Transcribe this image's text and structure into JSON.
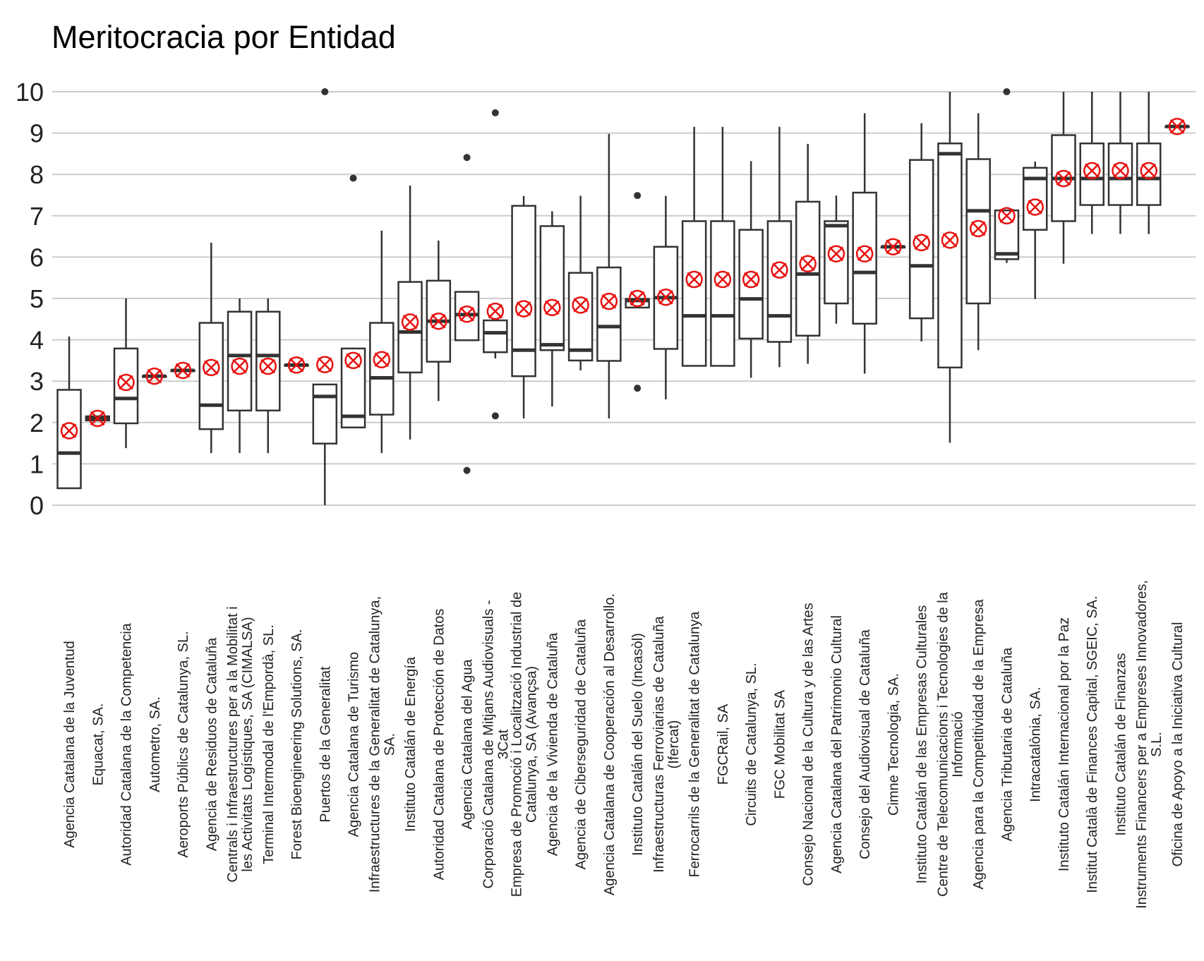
{
  "chart_data": {
    "type": "box",
    "title": "Meritocracia por Entidad",
    "xlabel": "",
    "ylabel": "",
    "ylim": [
      0,
      10
    ],
    "yticks": [
      "0",
      "1",
      "2",
      "3",
      "4",
      "5",
      "6",
      "7",
      "8",
      "9",
      "10"
    ],
    "grid": "horizontal",
    "colors": {
      "box_edge": "#333333",
      "mean_marker": "#e8110f",
      "grid": "#cccccc"
    },
    "mean_marker": "red circle with x",
    "categories": [
      "Agencia Catalana de la Juventud",
      "Equacat, SA.",
      "Autoridad Catalana de la Competencia",
      "Autometro, SA.",
      "Aeroports Públics de Catalunya, SL.",
      "Agencia de Residuos de Cataluña",
      "Centrals i Infraestructures per a la Mobilitat i\nles Activitats Logístiques, SA (CIMALSA)",
      "Terminal Intermodal de l'Empordà, SL.",
      "Forest Bioengineering Solutions, SA.",
      "Puertos de la Generalitat",
      "Agencia Catalana de Turismo",
      "Infraestructures de la Generalitat de Catalunya,\nSA.",
      "Instituto Catalán de Energía",
      "Autoridad Catalana de Protección de Datos",
      "Agencia Catalana del Agua",
      "Corporació Catalana de Mitjans Audiovisuals -\n3Cat",
      "Empresa de Promoció i Localització Industrial de\nCatalunya, SA (Avançsa)",
      "Agencia de la Vivienda de Cataluña",
      "Agencia de Ciberseguridad de Cataluña",
      "Agencia Catalana de Cooperación al Desarrollo.",
      "Instituto Catalán del Suelo (Incasòl)",
      "Infraestructuras Ferroviarias de Cataluña\n(Ifercat)",
      "Ferrocarrils de la Generalitat de Catalunya",
      "FGCRail, SA",
      "Circuits de Catalunya, SL.",
      "FGC Mobilitat SA",
      "Consejo Nacional de la Cultura y de las Artes",
      "Agencia Catalana del Patrimonio Cultural",
      "Consejo del Audiovisual de Cataluña",
      "Cimne Tecnologia, SA.",
      "Instituto Catalán de las Empresas Culturales",
      "Centre de Telecomunicacions i Tecnologies de la\nInformació",
      "Agencia para la Competitividad de la Empresa",
      "Agencia Tributaria de Cataluña",
      "Intracatalònia, SA.",
      "Instituto Catalán Internacional por la Paz",
      "Institut Català de Finances Capital, SGEIC, SA.",
      "Instituto Catalán de Finanzas",
      "Instruments Financers per a Empreses Innovadores,\nS.L.",
      "Oficina de Apoyo a la Iniciativa Cultural"
    ],
    "boxes": [
      {
        "whislo": 0.41,
        "q1": 0.41,
        "med": 1.26,
        "q3": 2.79,
        "whishi": 4.08,
        "mean": 1.8,
        "fliers": []
      },
      {
        "whislo": 2.05,
        "q1": 2.05,
        "med": 2.1,
        "q3": 2.15,
        "whishi": 2.15,
        "mean": 2.1,
        "fliers": []
      },
      {
        "whislo": 1.38,
        "q1": 1.98,
        "med": 2.58,
        "q3": 3.79,
        "whishi": 5.0,
        "mean": 2.97,
        "fliers": []
      },
      {
        "whislo": 3.12,
        "q1": 3.12,
        "med": 3.12,
        "q3": 3.12,
        "whishi": 3.12,
        "mean": 3.12,
        "fliers": []
      },
      {
        "whislo": 3.26,
        "q1": 3.26,
        "med": 3.26,
        "q3": 3.26,
        "whishi": 3.26,
        "mean": 3.26,
        "fliers": []
      },
      {
        "whislo": 1.26,
        "q1": 1.84,
        "med": 2.42,
        "q3": 4.41,
        "whishi": 6.35,
        "mean": 3.33,
        "fliers": []
      },
      {
        "whislo": 1.26,
        "q1": 2.29,
        "med": 3.62,
        "q3": 4.68,
        "whishi": 5.0,
        "mean": 3.36,
        "fliers": []
      },
      {
        "whislo": 1.26,
        "q1": 2.29,
        "med": 3.62,
        "q3": 4.68,
        "whishi": 5.0,
        "mean": 3.36,
        "fliers": []
      },
      {
        "whislo": 3.39,
        "q1": 3.39,
        "med": 3.39,
        "q3": 3.39,
        "whishi": 3.39,
        "mean": 3.39,
        "fliers": []
      },
      {
        "whislo": 0.0,
        "q1": 1.49,
        "med": 2.63,
        "q3": 2.92,
        "whishi": 2.92,
        "mean": 3.4,
        "fliers": [
          10
        ]
      },
      {
        "whislo": 1.88,
        "q1": 1.88,
        "med": 2.15,
        "q3": 3.79,
        "whishi": 3.79,
        "mean": 3.5,
        "fliers": [
          7.91
        ]
      },
      {
        "whislo": 1.26,
        "q1": 2.19,
        "med": 3.08,
        "q3": 4.41,
        "whishi": 6.64,
        "mean": 3.52,
        "fliers": []
      },
      {
        "whislo": 1.59,
        "q1": 3.21,
        "med": 4.19,
        "q3": 5.4,
        "whishi": 7.73,
        "mean": 4.43,
        "fliers": []
      },
      {
        "whislo": 2.52,
        "q1": 3.47,
        "med": 4.45,
        "q3": 5.43,
        "whishi": 6.4,
        "mean": 4.45,
        "fliers": []
      },
      {
        "whislo": 3.99,
        "q1": 3.99,
        "med": 4.61,
        "q3": 5.16,
        "whishi": 5.16,
        "mean": 4.62,
        "fliers": [
          8.41,
          0.84
        ]
      },
      {
        "whislo": 3.55,
        "q1": 3.7,
        "med": 4.17,
        "q3": 4.47,
        "whishi": 4.47,
        "mean": 4.69,
        "fliers": [
          9.49,
          2.16
        ]
      },
      {
        "whislo": 2.1,
        "q1": 3.12,
        "med": 3.75,
        "q3": 7.24,
        "whishi": 7.48,
        "mean": 4.75,
        "fliers": []
      },
      {
        "whislo": 2.39,
        "q1": 3.75,
        "med": 3.88,
        "q3": 6.75,
        "whishi": 7.11,
        "mean": 4.78,
        "fliers": []
      },
      {
        "whislo": 3.26,
        "q1": 3.5,
        "med": 3.75,
        "q3": 5.62,
        "whishi": 7.48,
        "mean": 4.84,
        "fliers": []
      },
      {
        "whislo": 2.1,
        "q1": 3.49,
        "med": 4.32,
        "q3": 5.75,
        "whishi": 8.98,
        "mean": 4.93,
        "fliers": []
      },
      {
        "whislo": 4.78,
        "q1": 4.78,
        "med": 4.95,
        "q3": 4.99,
        "whishi": 4.99,
        "mean": 5.0,
        "fliers": [
          7.49,
          2.83
        ]
      },
      {
        "whislo": 2.56,
        "q1": 3.78,
        "med": 5.02,
        "q3": 6.25,
        "whishi": 7.48,
        "mean": 5.03,
        "fliers": []
      },
      {
        "whislo": 3.37,
        "q1": 3.37,
        "med": 4.58,
        "q3": 6.87,
        "whishi": 9.15,
        "mean": 5.46,
        "fliers": []
      },
      {
        "whislo": 3.37,
        "q1": 3.37,
        "med": 4.58,
        "q3": 6.87,
        "whishi": 9.15,
        "mean": 5.46,
        "fliers": []
      },
      {
        "whislo": 3.08,
        "q1": 4.03,
        "med": 4.99,
        "q3": 6.66,
        "whishi": 8.32,
        "mean": 5.46,
        "fliers": []
      },
      {
        "whislo": 3.34,
        "q1": 3.95,
        "med": 4.58,
        "q3": 6.87,
        "whishi": 9.15,
        "mean": 5.69,
        "fliers": []
      },
      {
        "whislo": 3.42,
        "q1": 4.1,
        "med": 5.59,
        "q3": 7.34,
        "whishi": 8.74,
        "mean": 5.84,
        "fliers": []
      },
      {
        "whislo": 4.39,
        "q1": 4.88,
        "med": 6.76,
        "q3": 6.87,
        "whishi": 7.49,
        "mean": 6.08,
        "fliers": []
      },
      {
        "whislo": 3.18,
        "q1": 4.39,
        "med": 5.63,
        "q3": 7.56,
        "whishi": 9.48,
        "mean": 6.08,
        "fliers": []
      },
      {
        "whislo": 6.25,
        "q1": 6.25,
        "med": 6.25,
        "q3": 6.25,
        "whishi": 6.25,
        "mean": 6.25,
        "fliers": []
      },
      {
        "whislo": 3.96,
        "q1": 4.52,
        "med": 5.79,
        "q3": 8.35,
        "whishi": 9.24,
        "mean": 6.35,
        "fliers": []
      },
      {
        "whislo": 1.51,
        "q1": 3.33,
        "med": 8.5,
        "q3": 8.75,
        "whishi": 10.0,
        "mean": 6.41,
        "fliers": []
      },
      {
        "whislo": 3.75,
        "q1": 4.88,
        "med": 7.12,
        "q3": 8.37,
        "whishi": 9.48,
        "mean": 6.69,
        "fliers": []
      },
      {
        "whislo": 5.86,
        "q1": 5.95,
        "med": 6.08,
        "q3": 7.13,
        "whishi": 7.13,
        "mean": 7.0,
        "fliers": [
          10
        ]
      },
      {
        "whislo": 4.99,
        "q1": 6.66,
        "med": 7.9,
        "q3": 8.16,
        "whishi": 8.31,
        "mean": 7.21,
        "fliers": []
      },
      {
        "whislo": 5.84,
        "q1": 6.87,
        "med": 7.9,
        "q3": 8.95,
        "whishi": 10.0,
        "mean": 7.9,
        "fliers": []
      },
      {
        "whislo": 6.56,
        "q1": 7.26,
        "med": 7.9,
        "q3": 8.75,
        "whishi": 10.0,
        "mean": 8.09,
        "fliers": []
      },
      {
        "whislo": 6.56,
        "q1": 7.26,
        "med": 7.9,
        "q3": 8.75,
        "whishi": 10.0,
        "mean": 8.09,
        "fliers": []
      },
      {
        "whislo": 6.56,
        "q1": 7.26,
        "med": 7.9,
        "q3": 8.75,
        "whishi": 10.0,
        "mean": 8.09,
        "fliers": []
      },
      {
        "whislo": 9.16,
        "q1": 9.16,
        "med": 9.16,
        "q3": 9.16,
        "whishi": 9.16,
        "mean": 9.16,
        "fliers": []
      }
    ]
  }
}
